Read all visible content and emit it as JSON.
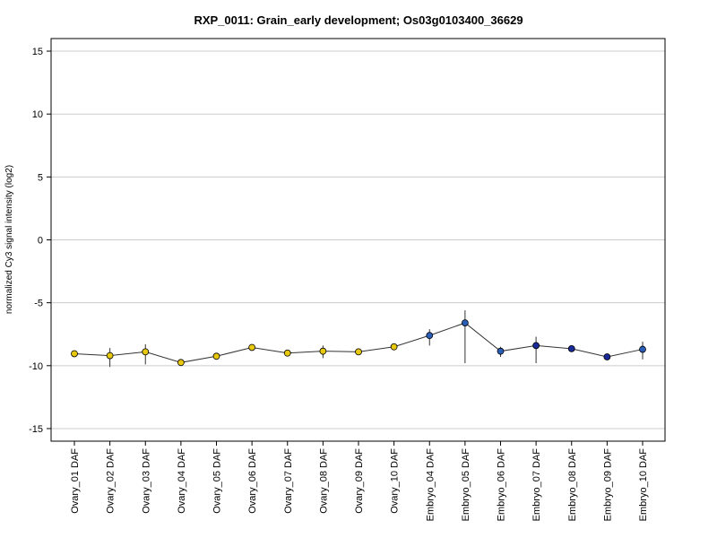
{
  "chart_data": {
    "type": "line",
    "title": "RXP_0011: Grain_early development; Os03g0103400_36629",
    "xlabel": "",
    "ylabel": "normalized Cy3 signal intensity (log2)",
    "ylim": [
      -16,
      16
    ],
    "yticks": [
      -15,
      -10,
      -5,
      0,
      5,
      10,
      15
    ],
    "grid": true,
    "categories": [
      "Ovary_01 DAF",
      "Ovary_02 DAF",
      "Ovary_03 DAF",
      "Ovary_04 DAF",
      "Ovary_05 DAF",
      "Ovary_06 DAF",
      "Ovary_07 DAF",
      "Ovary_08 DAF",
      "Ovary_09 DAF",
      "Ovary_10 DAF",
      "Embryo_04 DAF",
      "Embryo_05 DAF",
      "Embryo_06 DAF",
      "Embryo_07 DAF",
      "Embryo_08 DAF",
      "Embryo_09 DAF",
      "Embryo_10 DAF"
    ],
    "series": [
      {
        "values": [
          -9.05,
          -9.2,
          -8.9,
          -9.75,
          -9.25,
          -8.55,
          -9.0,
          -8.85,
          -8.9,
          -8.5,
          -7.6,
          -6.6,
          -8.85,
          -8.4,
          -8.65,
          -9.3,
          -8.7
        ],
        "error_low": [
          -9.1,
          -10.1,
          -9.9,
          -9.8,
          -9.4,
          -8.65,
          -9.15,
          -9.4,
          -9.0,
          -8.65,
          -8.4,
          -9.8,
          -9.3,
          -9.8,
          -8.9,
          -9.35,
          -9.5
        ],
        "error_high": [
          -9.0,
          -8.6,
          -8.3,
          -9.7,
          -9.1,
          -8.45,
          -8.85,
          -8.4,
          -8.8,
          -8.35,
          -7.1,
          -5.6,
          -8.5,
          -7.7,
          -8.4,
          -9.25,
          -8.1
        ],
        "point_colors": [
          "#e8c80c",
          "#e8c80c",
          "#e8c80c",
          "#e8c80c",
          "#e8c80c",
          "#e8c80c",
          "#e8c80c",
          "#e8c80c",
          "#e8c80c",
          "#e8c80c",
          "#2a5db5",
          "#2a5db5",
          "#2a5db5",
          "#1a2a9a",
          "#1a2a9a",
          "#1a2a9a",
          "#2a5db5"
        ]
      }
    ],
    "colors": {
      "line": "#333333",
      "grid": "#cccccc",
      "axis": "#000000"
    }
  }
}
